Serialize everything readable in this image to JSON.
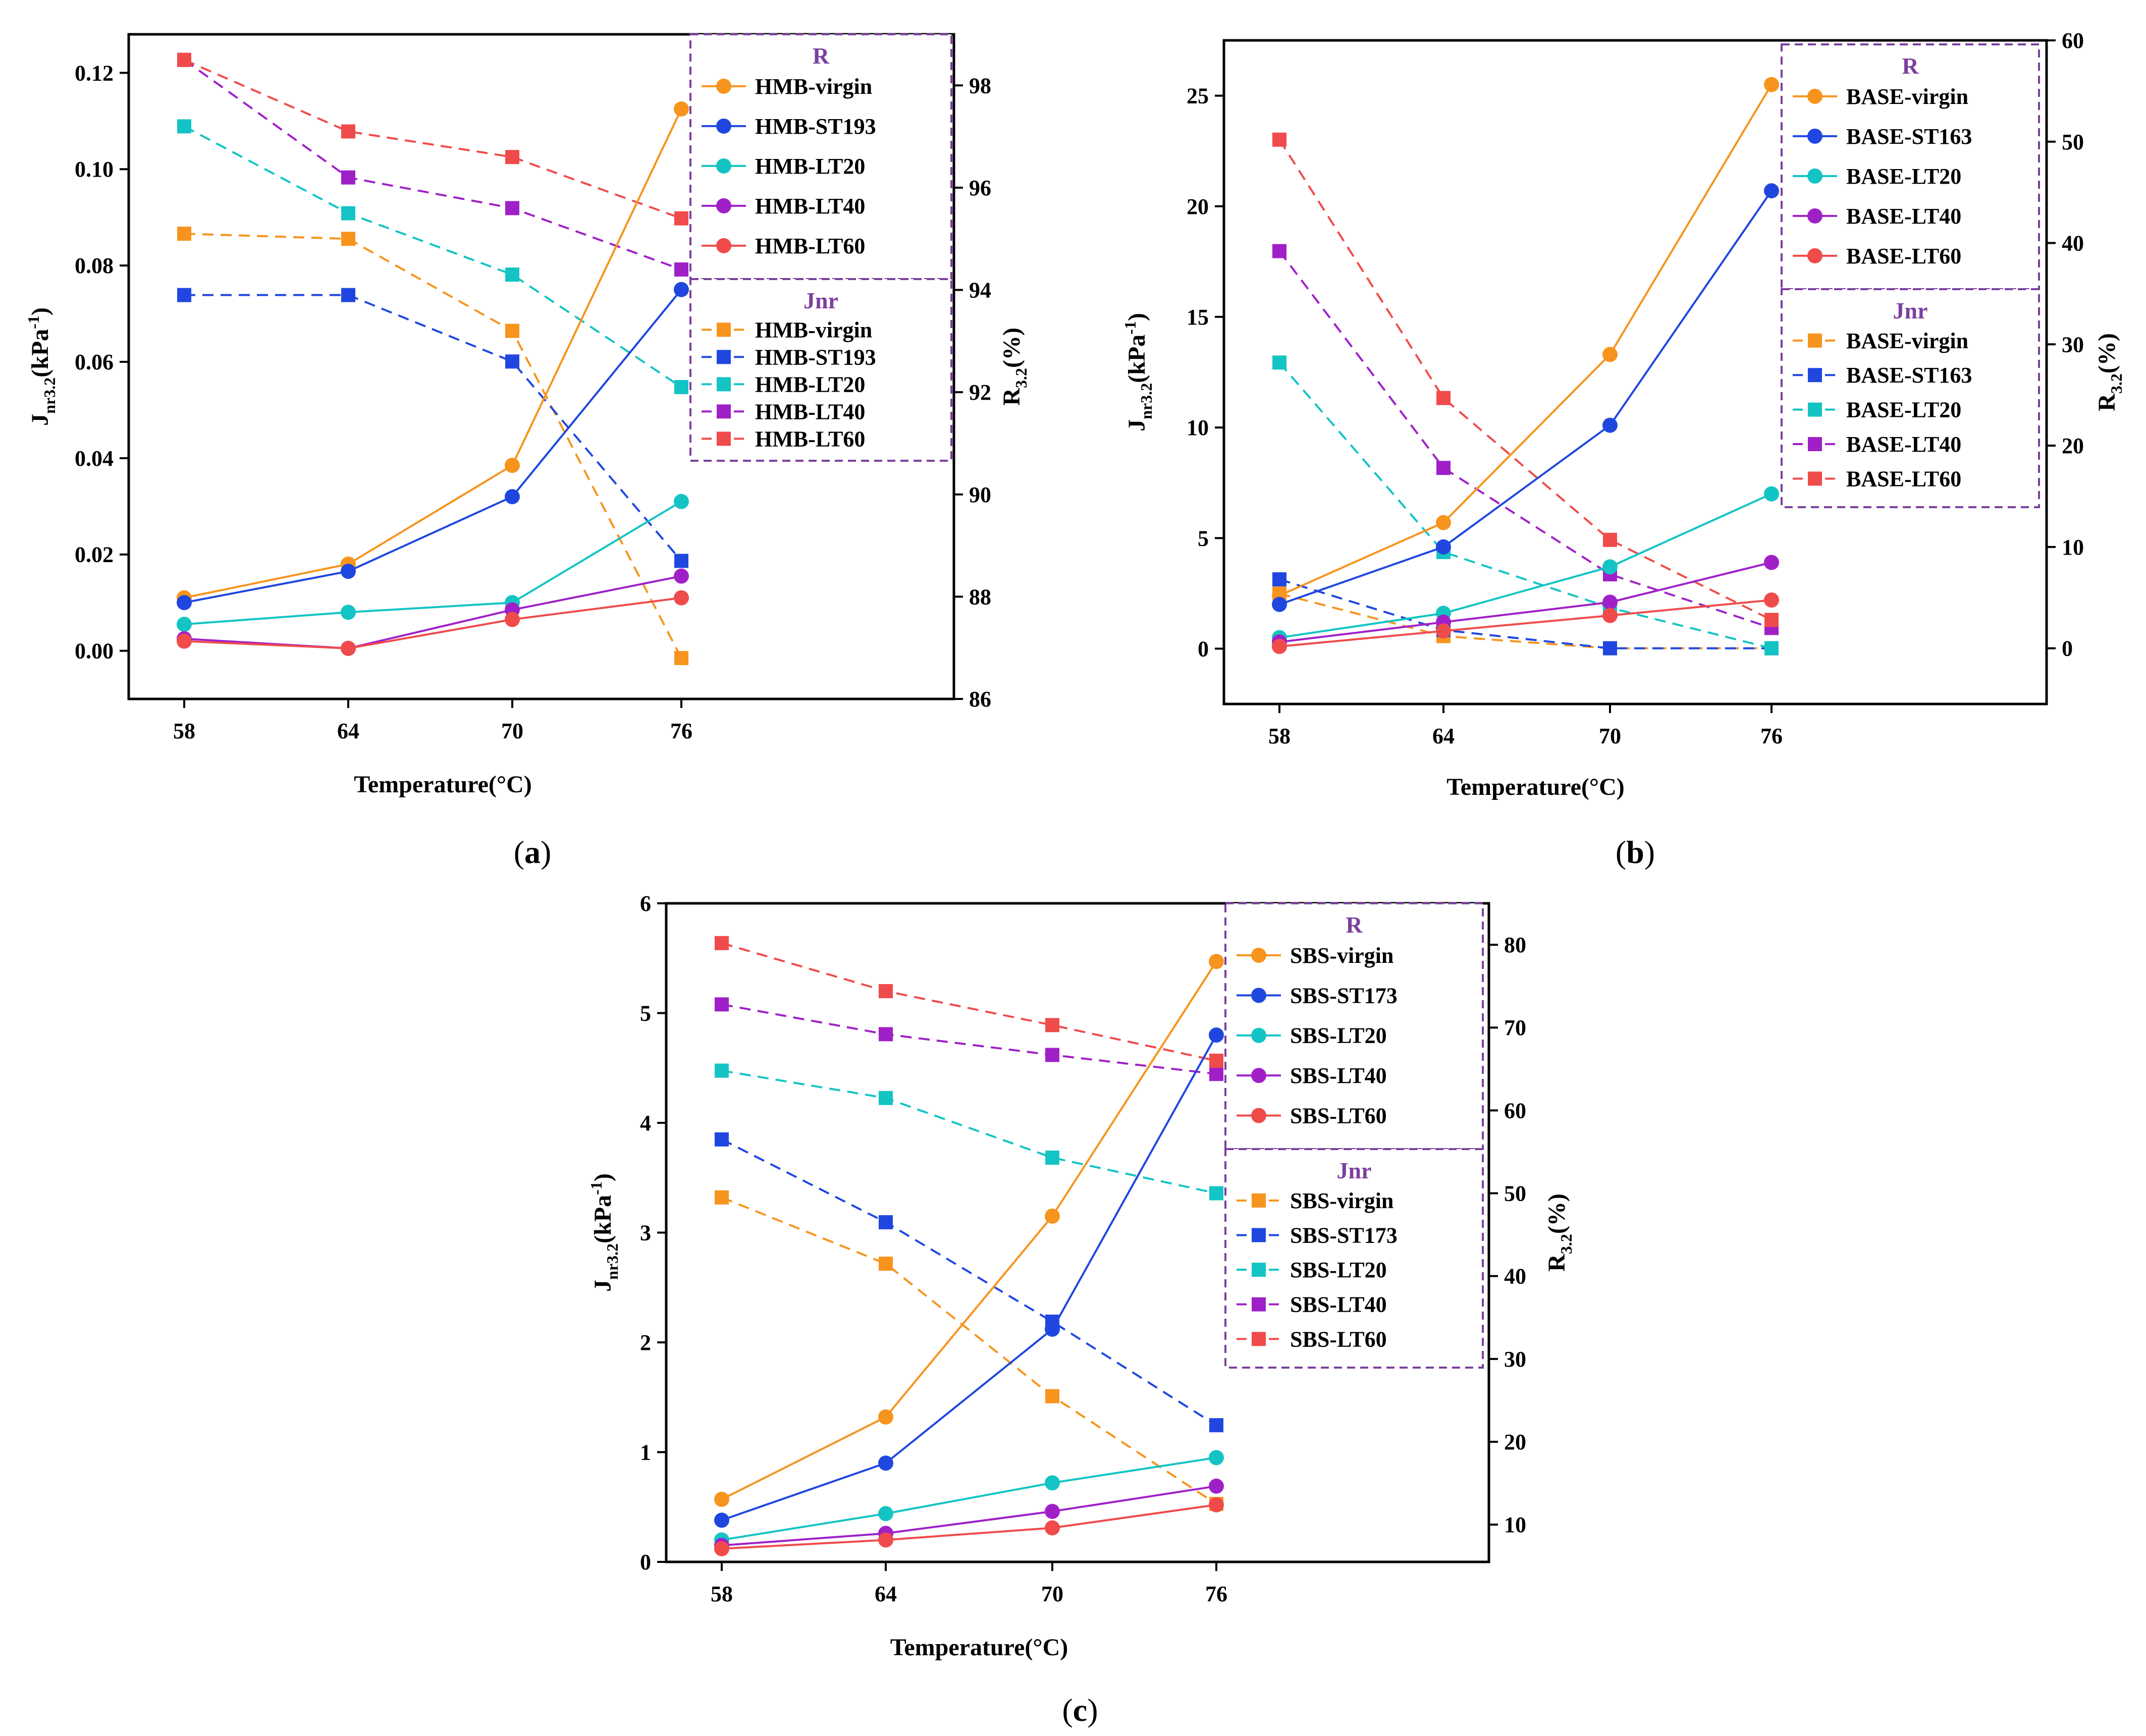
{
  "chart_data": [
    {
      "id": "a",
      "type": "line",
      "caption": "a",
      "xlabel": "Temperature(°C)",
      "categories": [
        "58",
        "64",
        "70",
        "76"
      ],
      "y_left": {
        "label_main": "J",
        "label_sub": "nr3.2",
        "label_unit": "(kPa",
        "label_sup": "-1",
        "label_tail": ")",
        "lim": [
          -0.01,
          0.128
        ],
        "ticks": [
          0.0,
          0.02,
          0.04,
          0.06,
          0.08,
          0.1,
          0.12
        ],
        "tick_labels": [
          "0.00",
          "0.02",
          "0.04",
          "0.06",
          "0.08",
          "0.10",
          "0.12"
        ]
      },
      "y_right": {
        "label_main": "R",
        "label_sub": "3.2",
        "label_tail": "(%)",
        "lim": [
          86,
          99
        ],
        "ticks": [
          86,
          88,
          90,
          92,
          94,
          96,
          98
        ],
        "tick_labels": [
          "86",
          "88",
          "90",
          "92",
          "94",
          "96",
          "98"
        ]
      },
      "legend_R_title": "R",
      "legend_J_title": "Jnr",
      "series_R": [
        {
          "name": "HMB-virgin",
          "color": "#f7941d",
          "values": [
            0.011,
            0.018,
            0.0385,
            0.1125
          ]
        },
        {
          "name": "HMB-ST193",
          "color": "#1f47e0",
          "values": [
            0.01,
            0.0165,
            0.032,
            0.075
          ]
        },
        {
          "name": "HMB-LT20",
          "color": "#14c4c4",
          "values": [
            0.0055,
            0.008,
            0.01,
            0.031
          ]
        },
        {
          "name": "HMB-LT40",
          "color": "#a020c8",
          "values": [
            0.0025,
            0.0005,
            0.0085,
            0.0155
          ]
        },
        {
          "name": "HMB-LT60",
          "color": "#f04b4b",
          "values": [
            0.002,
            0.0005,
            0.0065,
            0.011
          ]
        }
      ],
      "series_J": [
        {
          "name": "HMB-virgin",
          "color": "#f7941d",
          "values": [
            95.1,
            95.0,
            93.2,
            86.8
          ]
        },
        {
          "name": "HMB-ST193",
          "color": "#1f47e0",
          "values": [
            93.9,
            93.9,
            92.6,
            88.7
          ]
        },
        {
          "name": "HMB-LT20",
          "color": "#14c4c4",
          "values": [
            97.2,
            95.5,
            94.3,
            92.1
          ]
        },
        {
          "name": "HMB-LT40",
          "color": "#a020c8",
          "values": [
            98.5,
            96.2,
            95.6,
            94.4
          ]
        },
        {
          "name": "HMB-LT60",
          "color": "#f04b4b",
          "values": [
            98.5,
            97.1,
            96.6,
            95.4
          ]
        }
      ]
    },
    {
      "id": "b",
      "type": "line",
      "caption": "b",
      "xlabel": "Temperature(°C)",
      "categories": [
        "58",
        "64",
        "70",
        "76"
      ],
      "y_left": {
        "label_main": "J",
        "label_sub": "nr3.2",
        "label_unit": "(kPa",
        "label_sup": "-1",
        "label_tail": ")",
        "lim": [
          -2.5,
          27.5
        ],
        "ticks": [
          0,
          5,
          10,
          15,
          20,
          25
        ],
        "tick_labels": [
          "0",
          "5",
          "10",
          "15",
          "20",
          "25"
        ]
      },
      "y_right": {
        "label_main": "R",
        "label_sub": "3.2",
        "label_tail": "(%)",
        "lim": [
          -5.5,
          60
        ],
        "ticks": [
          0,
          10,
          20,
          30,
          40,
          50,
          60
        ],
        "tick_labels": [
          "0",
          "10",
          "20",
          "30",
          "40",
          "50",
          "60"
        ]
      },
      "legend_R_title": "R",
      "legend_J_title": "Jnr",
      "series_R": [
        {
          "name": "BASE-virgin",
          "color": "#f7941d",
          "values": [
            2.4,
            5.7,
            13.3,
            25.5
          ]
        },
        {
          "name": "BASE-ST163",
          "color": "#1f47e0",
          "values": [
            2.0,
            4.6,
            10.1,
            20.7
          ]
        },
        {
          "name": "BASE-LT20",
          "color": "#14c4c4",
          "values": [
            0.5,
            1.6,
            3.7,
            7.0
          ]
        },
        {
          "name": "BASE-LT40",
          "color": "#a020c8",
          "values": [
            0.3,
            1.2,
            2.1,
            3.9
          ]
        },
        {
          "name": "BASE-LT60",
          "color": "#f04b4b",
          "values": [
            0.1,
            0.8,
            1.5,
            2.2
          ]
        }
      ],
      "series_J": [
        {
          "name": "BASE-virgin",
          "color": "#f7941d",
          "values": [
            5.4,
            1.2,
            0.0,
            0.0
          ]
        },
        {
          "name": "BASE-ST163",
          "color": "#1f47e0",
          "values": [
            6.8,
            1.8,
            0.0,
            0.0
          ]
        },
        {
          "name": "BASE-LT20",
          "color": "#14c4c4",
          "values": [
            28.2,
            9.5,
            4.0,
            0.0
          ]
        },
        {
          "name": "BASE-LT40",
          "color": "#a020c8",
          "values": [
            39.2,
            17.8,
            7.3,
            2.0
          ]
        },
        {
          "name": "BASE-LT60",
          "color": "#f04b4b",
          "values": [
            50.2,
            24.7,
            10.7,
            2.8
          ]
        }
      ]
    },
    {
      "id": "c",
      "type": "line",
      "caption": "c",
      "xlabel": "Temperature(°C)",
      "categories": [
        "58",
        "64",
        "70",
        "76"
      ],
      "y_left": {
        "label_main": "J",
        "label_sub": "nr3.2",
        "label_unit": "(kPa",
        "label_sup": "-1",
        "label_tail": ")",
        "lim": [
          0,
          6
        ],
        "ticks": [
          0,
          1,
          2,
          3,
          4,
          5,
          6
        ],
        "tick_labels": [
          "0",
          "1",
          "2",
          "3",
          "4",
          "5",
          "6"
        ]
      },
      "y_right": {
        "label_main": "R",
        "label_sub": "3.2",
        "label_tail": "(%)",
        "lim": [
          5.5,
          85
        ],
        "ticks": [
          10,
          20,
          30,
          40,
          50,
          60,
          70,
          80
        ],
        "tick_labels": [
          "10",
          "20",
          "30",
          "40",
          "50",
          "60",
          "70",
          "80"
        ]
      },
      "legend_R_title": "R",
      "legend_J_title": "Jnr",
      "series_R": [
        {
          "name": "SBS-virgin",
          "color": "#f7941d",
          "values": [
            0.57,
            1.32,
            3.15,
            5.47
          ]
        },
        {
          "name": "SBS-ST173",
          "color": "#1f47e0",
          "values": [
            0.38,
            0.9,
            2.12,
            4.8
          ]
        },
        {
          "name": "SBS-LT20",
          "color": "#14c4c4",
          "values": [
            0.2,
            0.44,
            0.72,
            0.95
          ]
        },
        {
          "name": "SBS-LT40",
          "color": "#a020c8",
          "values": [
            0.15,
            0.26,
            0.46,
            0.69
          ]
        },
        {
          "name": "SBS-LT60",
          "color": "#f04b4b",
          "values": [
            0.12,
            0.2,
            0.31,
            0.52
          ]
        }
      ],
      "series_J": [
        {
          "name": "SBS-virgin",
          "color": "#f7941d",
          "values": [
            49.5,
            41.5,
            25.5,
            12.5
          ]
        },
        {
          "name": "SBS-ST173",
          "color": "#1f47e0",
          "values": [
            56.5,
            46.5,
            34.5,
            22.0
          ]
        },
        {
          "name": "SBS-LT20",
          "color": "#14c4c4",
          "values": [
            64.8,
            61.5,
            54.3,
            50.0
          ]
        },
        {
          "name": "SBS-LT40",
          "color": "#a020c8",
          "values": [
            72.8,
            69.2,
            66.7,
            64.4
          ]
        },
        {
          "name": "SBS-LT60",
          "color": "#f04b4b",
          "values": [
            80.2,
            74.4,
            70.3,
            66.0
          ]
        }
      ]
    }
  ]
}
